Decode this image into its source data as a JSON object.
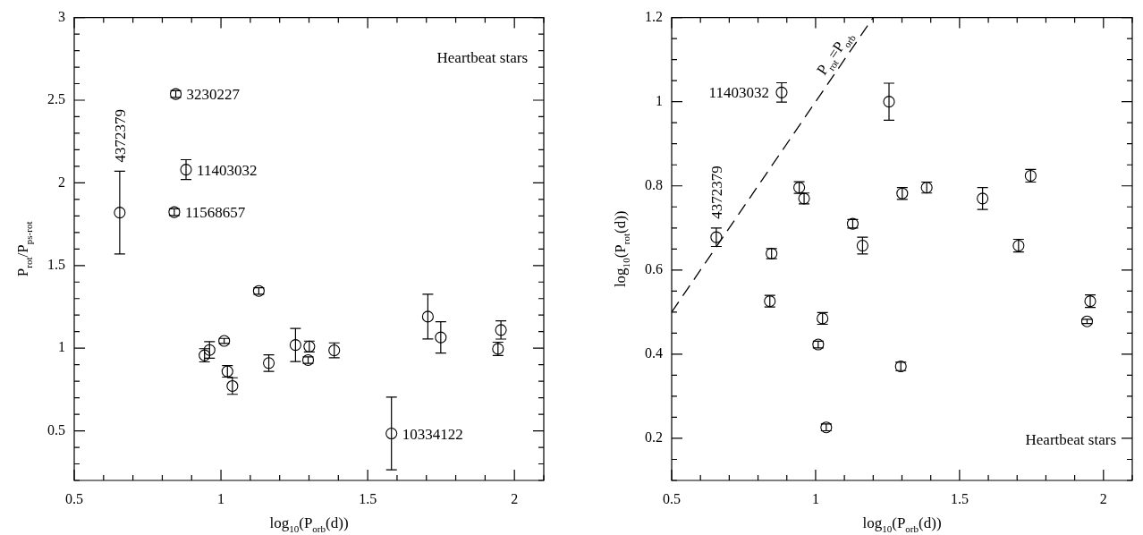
{
  "chart_data": [
    {
      "type": "scatter",
      "xlabel": "log$_{10}$(P$_{orb}$(d))",
      "ylabel": "P$_{rot}$/P$_{ps-rot}$",
      "marker": "circle",
      "grid": false,
      "legend": false,
      "xlim": [
        0.5,
        2.1
      ],
      "ylim": [
        0.2,
        3
      ],
      "xticks": [
        0.5,
        {
          "value": 0.6,
          "label": null
        },
        {
          "value": 0.7,
          "label": null
        },
        {
          "value": 0.8,
          "label": null
        },
        {
          "value": 0.9,
          "label": null
        },
        1,
        {
          "value": 1.1,
          "label": null
        },
        {
          "value": 1.2,
          "label": null
        },
        {
          "value": 1.3,
          "label": null
        },
        {
          "value": 1.4,
          "label": null
        },
        1.5,
        {
          "value": 1.6,
          "label": null
        },
        {
          "value": 1.7,
          "label": null
        },
        {
          "value": 1.8,
          "label": null
        },
        {
          "value": 1.9,
          "label": null
        },
        2,
        {
          "value": 2.1,
          "label": null
        }
      ],
      "yticks": [
        {
          "value": 0.2,
          "label": null
        },
        {
          "value": 0.3,
          "label": null
        },
        {
          "value": 0.4,
          "label": null
        },
        0.5,
        {
          "value": 0.6,
          "label": null
        },
        {
          "value": 0.7,
          "label": null
        },
        {
          "value": 0.8,
          "label": null
        },
        {
          "value": 0.9,
          "label": null
        },
        1,
        {
          "value": 1.1,
          "label": null
        },
        {
          "value": 1.2,
          "label": null
        },
        {
          "value": 1.3,
          "label": null
        },
        {
          "value": 1.4,
          "label": null
        },
        1.5,
        {
          "value": 1.6,
          "label": null
        },
        {
          "value": 1.7,
          "label": null
        },
        {
          "value": 1.8,
          "label": null
        },
        {
          "value": 1.9,
          "label": null
        },
        2,
        {
          "value": 2.1,
          "label": null
        },
        {
          "value": 2.2,
          "label": null
        },
        {
          "value": 2.3,
          "label": null
        },
        {
          "value": 2.4,
          "label": null
        },
        2.5,
        {
          "value": 2.6,
          "label": null
        },
        {
          "value": 2.7,
          "label": null
        },
        {
          "value": 2.8,
          "label": null
        },
        {
          "value": 2.9,
          "label": null
        },
        3
      ],
      "series": [
        {
          "color": "#000000",
          "x": [
            0.655,
            0.846,
            0.881,
            0.841,
            0.944,
            0.961,
            1.011,
            1.022,
            1.039,
            1.129,
            1.163,
            1.254,
            1.301,
            1.297,
            1.386,
            1.581,
            1.705,
            1.749,
            1.944,
            1.954
          ],
          "values": [
            1.82,
            2.537,
            2.08,
            1.823,
            0.957,
            0.989,
            1.044,
            0.86,
            0.771,
            1.346,
            0.91,
            1.019,
            1.01,
            0.928,
            0.987,
            0.484,
            1.191,
            1.065,
            0.996,
            1.11
          ],
          "errors": [
            0.25,
            0.02,
            0.06,
            0.02,
            0.04,
            0.05,
            0.015,
            0.035,
            0.05,
            0.02,
            0.05,
            0.1,
            0.033,
            0.02,
            0.045,
            0.22,
            0.135,
            0.095,
            0.04,
            0.055
          ]
        }
      ],
      "annotations": [
        "Heartbeat stars",
        {
          "text": "4372379",
          "x": 0.655,
          "y": 2.07
        },
        {
          "text": "3230227",
          "x": 0.846,
          "y": 2.537
        },
        {
          "text": "11403032",
          "x": 0.881,
          "y": 2.08
        },
        {
          "text": "11568657",
          "x": 0.841,
          "y": 1.823
        },
        {
          "text": "10334122",
          "x": 1.581,
          "y": 0.484
        }
      ]
    },
    {
      "type": "scatter",
      "xlabel": "log$_{10}$(P$_{orb}$(d))",
      "ylabel": "log$_{10}$(P$_{rot}$(d))",
      "marker": "circle",
      "grid": false,
      "legend": false,
      "xlim": [
        0.5,
        2.1
      ],
      "ylim": [
        0.1,
        1.2
      ],
      "xticks": [
        0.5,
        {
          "value": 0.6,
          "label": null
        },
        {
          "value": 0.7,
          "label": null
        },
        {
          "value": 0.8,
          "label": null
        },
        {
          "value": 0.9,
          "label": null
        },
        1,
        {
          "value": 1.1,
          "label": null
        },
        {
          "value": 1.2,
          "label": null
        },
        {
          "value": 1.3,
          "label": null
        },
        {
          "value": 1.4,
          "label": null
        },
        1.5,
        {
          "value": 1.6,
          "label": null
        },
        {
          "value": 1.7,
          "label": null
        },
        {
          "value": 1.8,
          "label": null
        },
        {
          "value": 1.9,
          "label": null
        },
        2,
        {
          "value": 2.1,
          "label": null
        }
      ],
      "yticks": [
        {
          "value": 0.1,
          "label": null
        },
        {
          "value": 0.15,
          "label": null
        },
        0.2,
        {
          "value": 0.25,
          "label": null
        },
        {
          "value": 0.3,
          "label": null
        },
        {
          "value": 0.35,
          "label": null
        },
        0.4,
        {
          "value": 0.45,
          "label": null
        },
        {
          "value": 0.5,
          "label": null
        },
        {
          "value": 0.55,
          "label": null
        },
        0.6,
        {
          "value": 0.65,
          "label": null
        },
        {
          "value": 0.7,
          "label": null
        },
        {
          "value": 0.75,
          "label": null
        },
        0.8,
        {
          "value": 0.85,
          "label": null
        },
        {
          "value": 0.9,
          "label": null
        },
        {
          "value": 0.95,
          "label": null
        },
        1,
        {
          "value": 1.05,
          "label": null
        },
        {
          "value": 1.1,
          "label": null
        },
        {
          "value": 1.15,
          "label": null
        },
        1.2
      ],
      "series": [
        {
          "color": "#000000",
          "x": [
            0.882,
            1.255,
            0.655,
            0.847,
            0.943,
            0.96,
            1.129,
            1.163,
            1.301,
            1.386,
            1.58,
            1.705,
            1.747,
            0.841,
            1.024,
            1.009,
            1.296,
            1.037,
            1.954,
            1.943
          ],
          "values": [
            1.022,
            1.0,
            0.678,
            0.639,
            0.796,
            0.77,
            0.71,
            0.658,
            0.782,
            0.796,
            0.77,
            0.658,
            0.824,
            0.526,
            0.485,
            0.423,
            0.371,
            0.226,
            0.526,
            0.478
          ],
          "errors": [
            0.023,
            0.044,
            0.022,
            0.012,
            0.014,
            0.013,
            0.01,
            0.02,
            0.014,
            0.013,
            0.026,
            0.015,
            0.015,
            0.014,
            0.014,
            0.008,
            0.01,
            0.008,
            0.015,
            0.005
          ]
        },
        {
          "type": "line",
          "color": "#000000",
          "line_style": "dashed",
          "marker": "none",
          "x": [
            0.5,
            1.2
          ],
          "values": [
            0.5,
            1.2
          ]
        }
      ],
      "annotations": [
        "Heartbeat stars",
        {
          "text": "P$_{rot}$=P$_{orb}$",
          "x": 1.1,
          "y": 1.1
        },
        {
          "text": "11403032",
          "x": 0.882,
          "y": 1.022
        },
        {
          "text": "4372379",
          "x": 0.655,
          "y": 0.7
        }
      ]
    }
  ]
}
